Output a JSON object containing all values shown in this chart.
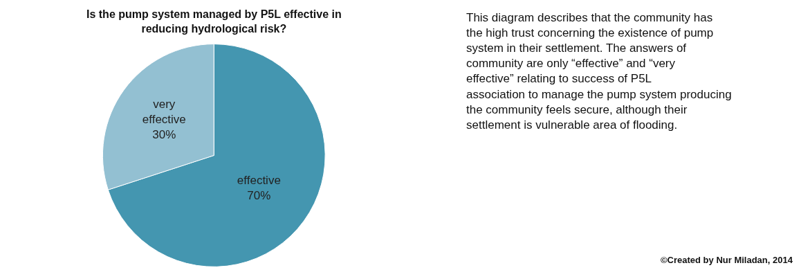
{
  "chart_data": {
    "type": "pie",
    "title": "Is the pump system managed by P5L effective in reducing hydrological risk?",
    "categories": [
      "effective",
      "very effective"
    ],
    "values": [
      70,
      30
    ],
    "value_labels": [
      "70%",
      "30%"
    ],
    "colors": [
      "#4496b0",
      "#93c0d2"
    ],
    "legend": false,
    "annotations": [
      "This diagram describes that the community has the high trust concerning the existence of pump system in their settlement. The answers of community are only “effective” and “very effective” relating to success of P5L association to manage the pump system producing the community feels secure, although their settlement is vulnerable area of flooding.",
      "©Created by Nur Miladan, 2014"
    ]
  }
}
